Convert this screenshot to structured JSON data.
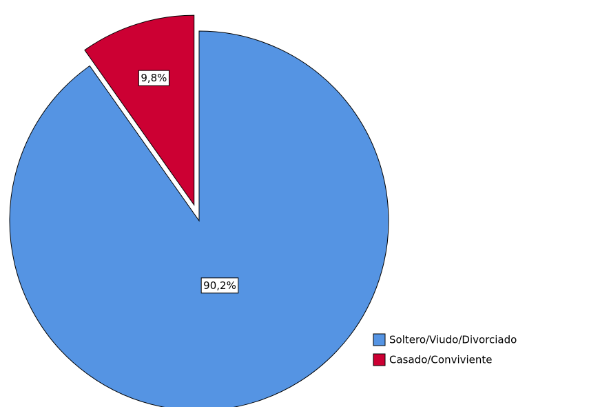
{
  "chart_data": {
    "type": "pie",
    "categories": [
      "Soltero/Viudo/Divorciado",
      "Casado/Conviviente"
    ],
    "values": [
      90.2,
      9.8
    ],
    "value_labels": [
      "90,2%",
      "9,8%"
    ],
    "colors": [
      "#5594e3",
      "#cc0033"
    ],
    "exploded": [
      false,
      true
    ],
    "legend": "bottom-right"
  }
}
